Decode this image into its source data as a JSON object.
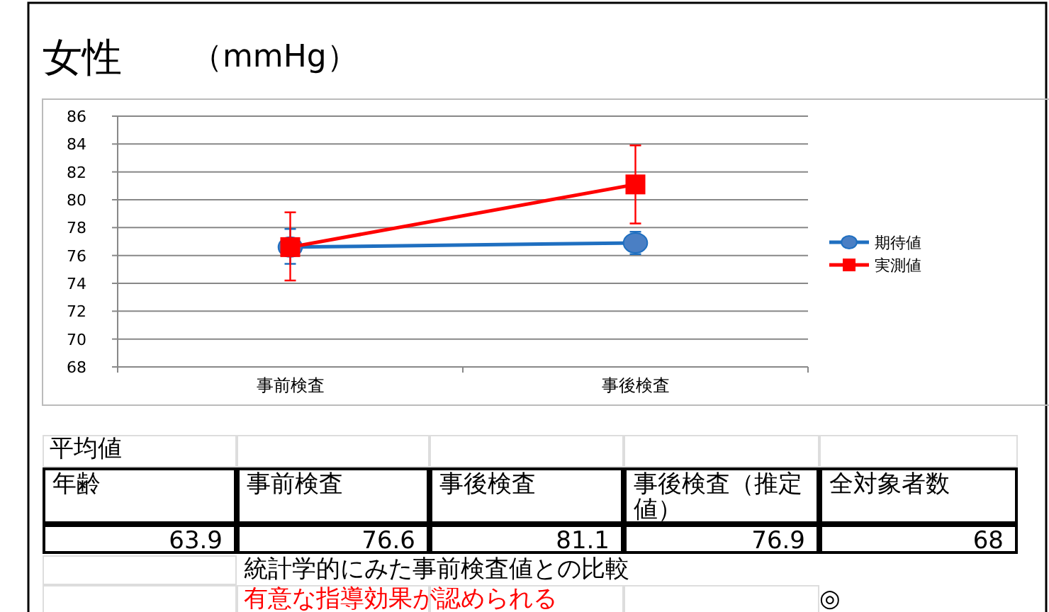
{
  "chart_data": {
    "type": "line",
    "title": "女性",
    "subtitle": "（mmHg）",
    "categories": [
      "事前検査",
      "事後検査"
    ],
    "series": [
      {
        "name": "期待値",
        "color": "#1f6fc0",
        "marker": "circle",
        "values": [
          76.6,
          76.9
        ],
        "errors": [
          [
            75.4,
            77.9
          ],
          [
            76.1,
            77.7
          ]
        ]
      },
      {
        "name": "実測値",
        "color": "#ff0000",
        "marker": "square",
        "values": [
          76.6,
          81.1
        ],
        "errors": [
          [
            74.2,
            79.1
          ],
          [
            78.3,
            83.9
          ]
        ]
      }
    ],
    "ylim": [
      68,
      86
    ],
    "yticks": [
      68,
      70,
      72,
      74,
      76,
      78,
      80,
      82,
      84,
      86
    ],
    "grid": "y",
    "legend": "right",
    "annotations": [
      "平均値",
      "年齢",
      "事前検査",
      "事後検査",
      "事後検査（推定値）",
      "全対象者数",
      "63.9",
      "76.6",
      "81.1",
      "76.9",
      "68",
      "統計学的にみた事前検査値との比較",
      "有意な指導効果が認められる",
      "◎"
    ]
  }
}
